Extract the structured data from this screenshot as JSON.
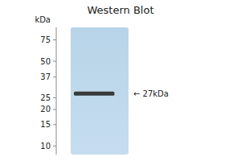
{
  "chart_data": {
    "type": "gel",
    "title": "Western Blot",
    "y_label": "kDa",
    "values": [
      27
    ],
    "value_labels": [
      "← 27kDa"
    ],
    "data_labels": true,
    "color": "#3a3a3a",
    "log": "y",
    "ylim": [
      8.5,
      95
    ],
    "yticks": [
      75,
      50,
      37,
      25,
      20,
      15,
      10
    ]
  }
}
